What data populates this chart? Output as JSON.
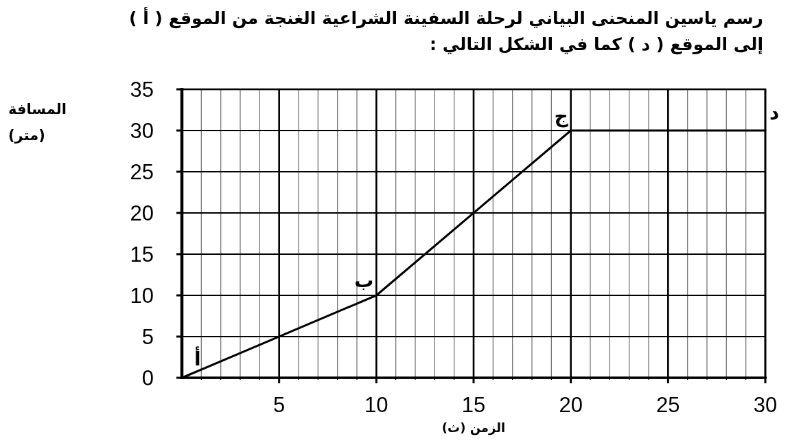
{
  "chart_data": {
    "type": "line",
    "title": "رسم ياسين  المنحنى البياني لرحلة السفينة الشراعية الغنجة من الموقع ( أ )\nإلى الموقع ( د ) كما في الشكل التالي :",
    "xlabel": "الزمن (ث)",
    "ylabel": "المسافة (متر)",
    "x": [
      0,
      10,
      20,
      30
    ],
    "series": [
      {
        "color": "#000000",
        "values": [
          0,
          10,
          30,
          30
        ]
      }
    ],
    "xlim": [
      0,
      30
    ],
    "ylim": [
      0,
      35
    ],
    "xticks": [
      {
        "value": 1,
        "label": null
      },
      {
        "value": 2,
        "label": null
      },
      {
        "value": 3,
        "label": null
      },
      {
        "value": 4,
        "label": null
      },
      5,
      {
        "value": 6,
        "label": null
      },
      {
        "value": 7,
        "label": null
      },
      {
        "value": 8,
        "label": null
      },
      {
        "value": 9,
        "label": null
      },
      10,
      {
        "value": 11,
        "label": null
      },
      {
        "value": 12,
        "label": null
      },
      {
        "value": 13,
        "label": null
      },
      {
        "value": 14,
        "label": null
      },
      15,
      {
        "value": 16,
        "label": null
      },
      {
        "value": 17,
        "label": null
      },
      {
        "value": 18,
        "label": null
      },
      {
        "value": 19,
        "label": null
      },
      20,
      {
        "value": 21,
        "label": null
      },
      {
        "value": 22,
        "label": null
      },
      {
        "value": 23,
        "label": null
      },
      {
        "value": 24,
        "label": null
      },
      25,
      {
        "value": 26,
        "label": null
      },
      {
        "value": 27,
        "label": null
      },
      {
        "value": 28,
        "label": null
      },
      {
        "value": 29,
        "label": null
      },
      30
    ],
    "yticks": [
      0,
      5,
      10,
      15,
      20,
      25,
      30,
      35
    ],
    "grid": true,
    "annotations": [
      {
        "text": "أ",
        "x": 0,
        "y": 0
      },
      {
        "text": "ب",
        "x": 10,
        "y": 10
      },
      {
        "text": "ج",
        "x": 20,
        "y": 30
      },
      {
        "text": "د",
        "x": 30,
        "y": 30
      }
    ]
  }
}
